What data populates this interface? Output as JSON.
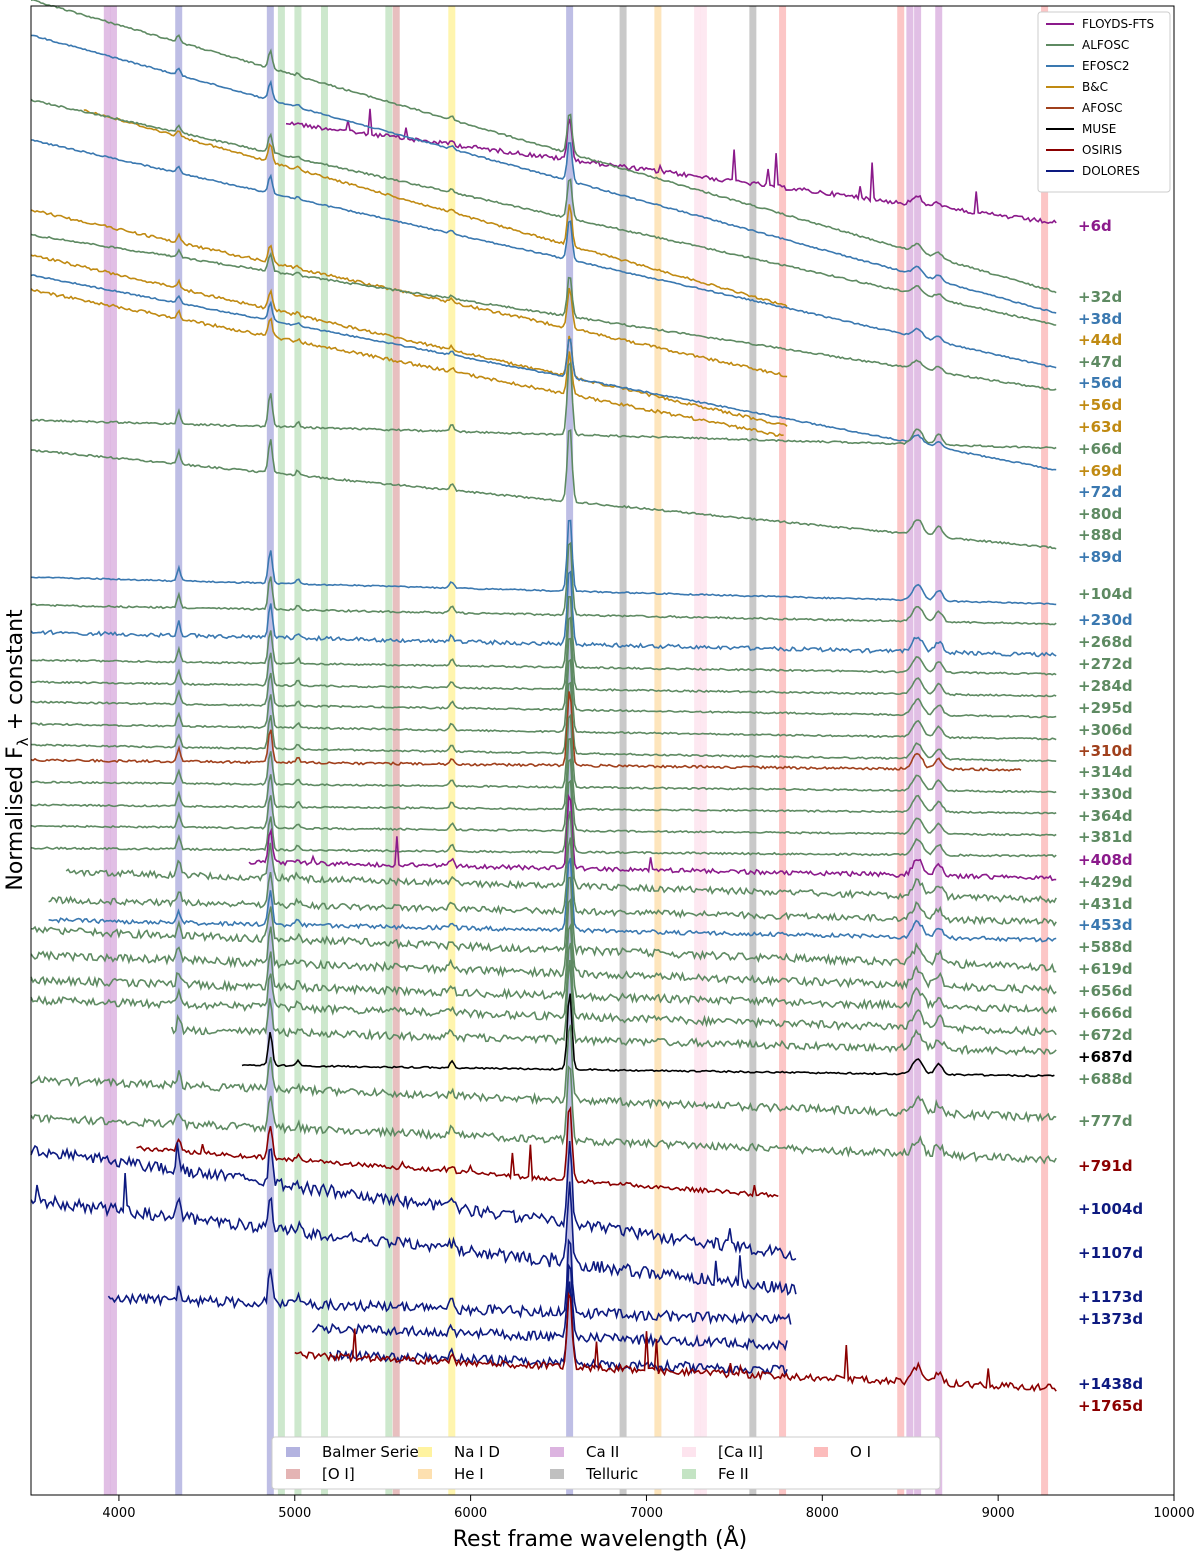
{
  "chart_data": {
    "type": "line",
    "xlabel": "Rest frame wavelength (Å)",
    "ylabel": "Normalised F",
    "ylabel_sub": "λ",
    "ylabel_suffix": " + constant",
    "xlim": [
      3500,
      10000
    ],
    "xticks": [
      4000,
      5000,
      6000,
      7000,
      8000,
      9000,
      10000
    ],
    "grid": false,
    "legend_position": "top-right",
    "instruments": [
      {
        "name": "FLOYDS-FTS",
        "color": "#8b1a8b"
      },
      {
        "name": "ALFOSC",
        "color": "#5e8a62"
      },
      {
        "name": "EFOSC2",
        "color": "#3a78b0"
      },
      {
        "name": "B&C",
        "color": "#c08a12"
      },
      {
        "name": "AFOSC",
        "color": "#a0401c"
      },
      {
        "name": "MUSE",
        "color": "#000000"
      },
      {
        "name": "OSIRIS",
        "color": "#8b0000"
      },
      {
        "name": "DOLORES",
        "color": "#0d1a80"
      }
    ],
    "line_bands": [
      {
        "name": "Balmer Series",
        "color": "#b3b3e0",
        "waves": [
          4340,
          4861,
          6563
        ]
      },
      {
        "name": "Na I D",
        "color": "#fff3a0",
        "waves": [
          5893
        ]
      },
      {
        "name": "Ca II",
        "color": "#dcb4e0",
        "waves": [
          3934,
          3969,
          8498,
          8542,
          8662
        ]
      },
      {
        "name": "[Ca II]",
        "color": "#fde4ee",
        "waves": [
          7291,
          7324
        ]
      },
      {
        "name": "O I",
        "color": "#fcbcbc",
        "waves": [
          7774,
          8446,
          9264
        ]
      },
      {
        "name": "[O I]",
        "color": "#e4b4b4",
        "waves": [
          5577
        ]
      },
      {
        "name": "He I",
        "color": "#fde0b0",
        "waves": [
          7065
        ]
      },
      {
        "name": "Telluric",
        "color": "#c0c0c0",
        "waves": [
          6867,
          7605
        ]
      },
      {
        "name": "Fe II",
        "color": "#c4e4c4",
        "waves": [
          4924,
          5018,
          5169,
          5535
        ]
      }
    ],
    "series": [
      {
        "epoch": "+6d",
        "instrument": "FLOYDS-FTS",
        "range": [
          4950,
          9330
        ],
        "start": 123,
        "end": 223,
        "noise": 0.32,
        "spikes": 1
      },
      {
        "epoch": "+32d",
        "instrument": "ALFOSC",
        "range": [
          3500,
          9330
        ],
        "start": 0,
        "end": 292,
        "noise": 0.12,
        "spikes": 0
      },
      {
        "epoch": "+38d",
        "instrument": "EFOSC2",
        "range": [
          3500,
          9330
        ],
        "start": 35,
        "end": 313,
        "noise": 0.1,
        "spikes": 0
      },
      {
        "epoch": "+44d",
        "instrument": "B&C",
        "range": [
          3800,
          7800
        ],
        "start": 110,
        "end": 306,
        "noise": 0.15,
        "spikes": 0
      },
      {
        "epoch": "+47d",
        "instrument": "ALFOSC",
        "range": [
          3500,
          9330
        ],
        "start": 100,
        "end": 325,
        "noise": 0.12,
        "spikes": 0
      },
      {
        "epoch": "+56d",
        "instrument": "EFOSC2",
        "range": [
          3500,
          9330
        ],
        "start": 140,
        "end": 368,
        "noise": 0.1,
        "spikes": 0
      },
      {
        "epoch": "+56d",
        "instrument": "B&C",
        "range": [
          3500,
          7800
        ],
        "start": 210,
        "end": 376,
        "noise": 0.2,
        "spikes": 0
      },
      {
        "epoch": "+63d",
        "instrument": "B&C",
        "range": [
          3500,
          7800
        ],
        "start": 255,
        "end": 426,
        "noise": 0.2,
        "spikes": 0
      },
      {
        "epoch": "+66d",
        "instrument": "ALFOSC",
        "range": [
          3500,
          9330
        ],
        "start": 235,
        "end": 390,
        "noise": 0.13,
        "spikes": 0
      },
      {
        "epoch": "+69d",
        "instrument": "B&C",
        "range": [
          3500,
          7780
        ],
        "start": 290,
        "end": 436,
        "noise": 0.22,
        "spikes": 0
      },
      {
        "epoch": "+72d",
        "instrument": "EFOSC2",
        "range": [
          3500,
          9330
        ],
        "start": 275,
        "end": 470,
        "noise": 0.1,
        "spikes": 0
      },
      {
        "epoch": "+80d",
        "instrument": "ALFOSC",
        "range": [
          3500,
          9330
        ],
        "start": 420,
        "end": 448,
        "noise": 0.13,
        "spikes": 0
      },
      {
        "epoch": "+88d",
        "instrument": "ALFOSC",
        "range": [
          3500,
          9330
        ],
        "start": 450,
        "end": 548,
        "noise": 0.13,
        "spikes": 0
      },
      {
        "epoch": "+89d",
        "instrument": "EFOSC2",
        "range": [
          3500,
          9330
        ],
        "start": 577,
        "end": 604,
        "noise": 0.1,
        "spikes": 0
      },
      {
        "epoch": "+104d",
        "instrument": "ALFOSC",
        "range": [
          3500,
          9330
        ],
        "start": 605,
        "end": 624,
        "noise": 0.13,
        "spikes": 0
      },
      {
        "epoch": "+230d",
        "instrument": "EFOSC2",
        "range": [
          3500,
          9330
        ],
        "start": 632,
        "end": 655,
        "noise": 0.28,
        "spikes": 0
      },
      {
        "epoch": "+268d",
        "instrument": "ALFOSC",
        "range": [
          3500,
          9330
        ],
        "start": 660,
        "end": 674,
        "noise": 0.12,
        "spikes": 0
      },
      {
        "epoch": "+272d",
        "instrument": "ALFOSC",
        "range": [
          3500,
          9330
        ],
        "start": 682,
        "end": 696,
        "noise": 0.12,
        "spikes": 0
      },
      {
        "epoch": "+284d",
        "instrument": "ALFOSC",
        "range": [
          3500,
          9330
        ],
        "start": 702,
        "end": 717,
        "noise": 0.12,
        "spikes": 0
      },
      {
        "epoch": "+295d",
        "instrument": "ALFOSC",
        "range": [
          3500,
          9330
        ],
        "start": 724,
        "end": 739,
        "noise": 0.12,
        "spikes": 0
      },
      {
        "epoch": "+306d",
        "instrument": "ALFOSC",
        "range": [
          3500,
          9330
        ],
        "start": 745,
        "end": 761,
        "noise": 0.12,
        "spikes": 0
      },
      {
        "epoch": "+310d",
        "instrument": "AFOSC",
        "range": [
          3500,
          9130
        ],
        "start": 760,
        "end": 770,
        "noise": 0.18,
        "spikes": 0
      },
      {
        "epoch": "+314d",
        "instrument": "ALFOSC",
        "range": [
          3500,
          9330
        ],
        "start": 782,
        "end": 792,
        "noise": 0.12,
        "spikes": 0
      },
      {
        "epoch": "+330d",
        "instrument": "ALFOSC",
        "range": [
          3500,
          9330
        ],
        "start": 805,
        "end": 813,
        "noise": 0.12,
        "spikes": 0
      },
      {
        "epoch": "+364d",
        "instrument": "ALFOSC",
        "range": [
          3500,
          9330
        ],
        "start": 826,
        "end": 835,
        "noise": 0.12,
        "spikes": 0
      },
      {
        "epoch": "+381d",
        "instrument": "ALFOSC",
        "range": [
          3500,
          9330
        ],
        "start": 848,
        "end": 856,
        "noise": 0.14,
        "spikes": 0
      },
      {
        "epoch": "+408d",
        "instrument": "FLOYDS-FTS",
        "range": [
          4740,
          9330
        ],
        "start": 862,
        "end": 878,
        "noise": 0.32,
        "spikes": 1
      },
      {
        "epoch": "+429d",
        "instrument": "ALFOSC",
        "range": [
          3700,
          9330
        ],
        "start": 872,
        "end": 900,
        "noise": 0.45,
        "spikes": 0
      },
      {
        "epoch": "+431d",
        "instrument": "ALFOSC",
        "range": [
          3600,
          9330
        ],
        "start": 900,
        "end": 922,
        "noise": 0.45,
        "spikes": 0
      },
      {
        "epoch": "+453d",
        "instrument": "EFOSC2",
        "range": [
          3600,
          9330
        ],
        "start": 920,
        "end": 940,
        "noise": 0.3,
        "spikes": 0
      },
      {
        "epoch": "+588d",
        "instrument": "ALFOSC",
        "range": [
          3500,
          9330
        ],
        "start": 930,
        "end": 968,
        "noise": 0.55,
        "spikes": 0
      },
      {
        "epoch": "+619d",
        "instrument": "ALFOSC",
        "range": [
          3500,
          9330
        ],
        "start": 955,
        "end": 990,
        "noise": 0.55,
        "spikes": 0
      },
      {
        "epoch": "+656d",
        "instrument": "ALFOSC",
        "range": [
          3500,
          9330
        ],
        "start": 980,
        "end": 1010,
        "noise": 0.55,
        "spikes": 0
      },
      {
        "epoch": "+666d",
        "instrument": "ALFOSC",
        "range": [
          3500,
          9330
        ],
        "start": 1000,
        "end": 1032,
        "noise": 0.55,
        "spikes": 0
      },
      {
        "epoch": "+672d",
        "instrument": "ALFOSC",
        "range": [
          4300,
          9330
        ],
        "start": 1030,
        "end": 1052,
        "noise": 0.55,
        "spikes": 0
      },
      {
        "epoch": "+687d",
        "instrument": "MUSE",
        "range": [
          4700,
          9320
        ],
        "start": 1065,
        "end": 1076,
        "noise": 0.12,
        "spikes": 0
      },
      {
        "epoch": "+688d",
        "instrument": "ALFOSC",
        "range": [
          3500,
          9330
        ],
        "start": 1080,
        "end": 1118,
        "noise": 0.55,
        "spikes": 0
      },
      {
        "epoch": "+777d",
        "instrument": "ALFOSC",
        "range": [
          3500,
          9330
        ],
        "start": 1118,
        "end": 1160,
        "noise": 0.55,
        "spikes": 0
      },
      {
        "epoch": "+791d",
        "instrument": "OSIRIS",
        "range": [
          4100,
          7750
        ],
        "start": 1148,
        "end": 1196,
        "noise": 0.3,
        "spikes": 1
      },
      {
        "epoch": "+1004d",
        "instrument": "DOLORES",
        "range": [
          3500,
          7850
        ],
        "start": 1150,
        "end": 1255,
        "noise": 0.85,
        "spikes": 1
      },
      {
        "epoch": "+1107d",
        "instrument": "DOLORES",
        "range": [
          3500,
          7850
        ],
        "start": 1200,
        "end": 1290,
        "noise": 0.85,
        "spikes": 1
      },
      {
        "epoch": "+1173d",
        "instrument": "DOLORES",
        "range": [
          3940,
          7820
        ],
        "start": 1298,
        "end": 1320,
        "noise": 0.75,
        "spikes": 0
      },
      {
        "epoch": "+1373d",
        "instrument": "DOLORES",
        "range": [
          5100,
          7800
        ],
        "start": 1328,
        "end": 1345,
        "noise": 0.7,
        "spikes": 0
      },
      {
        "epoch": "+1438d",
        "instrument": "DOLORES",
        "range": [
          5200,
          7800
        ],
        "start": 1355,
        "end": 1370,
        "noise": 0.7,
        "spikes": 0
      },
      {
        "epoch": "+1765d",
        "instrument": "OSIRIS",
        "range": [
          5000,
          9330
        ],
        "start": 1355,
        "end": 1388,
        "noise": 0.5,
        "spikes": 1
      }
    ]
  }
}
